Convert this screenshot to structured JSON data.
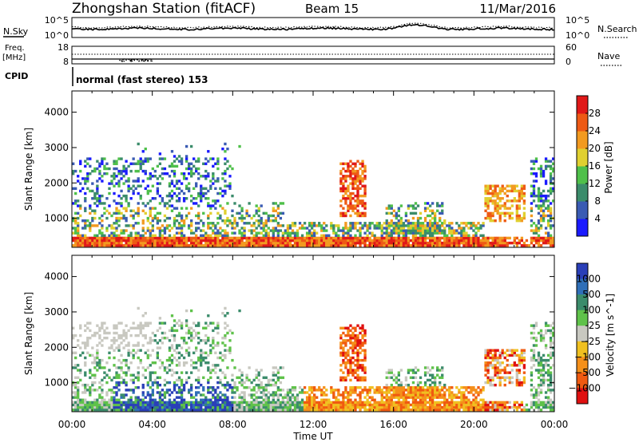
{
  "header": {
    "station": "Zhongshan Station (fitACF)",
    "beam": "Beam 15",
    "date": "11/Mar/2016"
  },
  "noise_panel": {
    "left_label": "N.Sky",
    "right_label": "N.Search",
    "left_ticks": [
      "10^5",
      "10^0"
    ],
    "right_ticks": [
      "10^5",
      "10^0"
    ]
  },
  "freq_panel": {
    "left_label_1": "Freq.",
    "left_label_2": "[MHz]",
    "right_label": "Nave",
    "left_ticks": [
      "18",
      "8"
    ],
    "right_ticks": [
      "60",
      "0"
    ]
  },
  "cpid_panel": {
    "label": "CPID",
    "value": "normal (fast stereo) 153"
  },
  "chart_data": [
    {
      "type": "heatmap",
      "title": "Power",
      "xlabel": "Time UT",
      "ylabel": "Slant Range [km]",
      "x_ticks": [
        "00:00",
        "04:00",
        "08:00",
        "12:00",
        "16:00",
        "20:00",
        "00:00"
      ],
      "y_ticks": [
        1000,
        2000,
        3000,
        4000
      ],
      "ylim": [
        180,
        4600
      ],
      "colorbar": {
        "label": "Power [dB]",
        "ticks": [
          4,
          8,
          12,
          16,
          20,
          24,
          28
        ],
        "range": [
          0,
          32
        ],
        "colors": [
          "#1a1aff",
          "#3a5bb3",
          "#3b8c6b",
          "#4fc04a",
          "#e0d030",
          "#f29a20",
          "#ee5a15",
          "#e01818"
        ]
      }
    },
    {
      "type": "heatmap",
      "title": "Velocity",
      "xlabel": "Time UT",
      "ylabel": "Slant Range [km]",
      "x_ticks": [
        "00:00",
        "04:00",
        "08:00",
        "12:00",
        "16:00",
        "20:00",
        "00:00"
      ],
      "y_ticks": [
        1000,
        2000,
        3000,
        4000
      ],
      "ylim": [
        180,
        4600
      ],
      "colorbar": {
        "label": "Velocity [m s^-1]",
        "ticks": [
          "1000",
          "500",
          "100",
          "25",
          "−25",
          "−100",
          "−500",
          "−1000"
        ],
        "colors": [
          "#2a3fb8",
          "#2f6fb8",
          "#3b8c6b",
          "#5fc24a",
          "#c8c8c0",
          "#f0c020",
          "#f5901a",
          "#f05a10",
          "#e01010"
        ]
      }
    }
  ],
  "x_axis_title": "Time UT"
}
